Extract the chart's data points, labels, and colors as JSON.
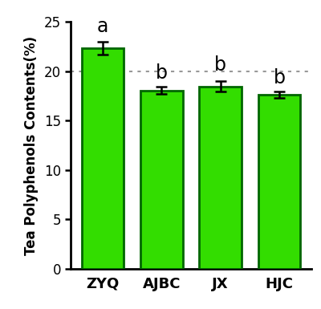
{
  "categories": [
    "ZYQ",
    "AJBC",
    "JX",
    "HJC"
  ],
  "values": [
    22.3,
    18.05,
    18.45,
    17.6
  ],
  "errors": [
    0.65,
    0.35,
    0.55,
    0.3
  ],
  "bar_color": "#33DD00",
  "bar_edgecolor": "#006600",
  "bar_linewidth": 2.0,
  "bar_width": 0.72,
  "letters": [
    "a",
    "b",
    "b",
    "b"
  ],
  "letter_fontsize": 17,
  "ylabel": "Tea Polyphenols Contents(%)",
  "ylabel_fontsize": 12,
  "ylim": [
    0,
    25
  ],
  "yticks": [
    0,
    5,
    10,
    15,
    20,
    25
  ],
  "tick_fontsize": 12,
  "xlabel_fontsize": 13,
  "dotted_line_y": 20,
  "dotted_line_color": "#999999",
  "background_color": "#ffffff",
  "spine_linewidth": 2.0
}
